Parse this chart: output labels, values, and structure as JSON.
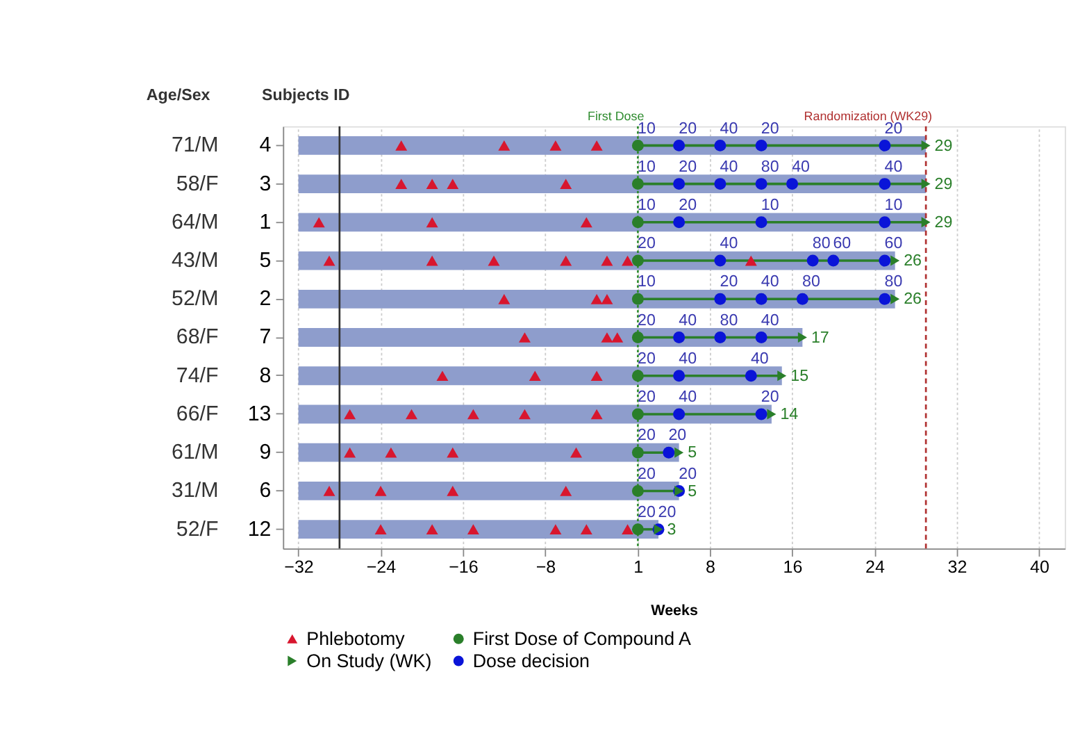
{
  "chart_data": {
    "type": "bar",
    "orientation": "horizontal",
    "xlabel": "Weeks",
    "ylabel": "Subjects ID",
    "y2label": "Age/Sex",
    "categories": [
      "4",
      "3",
      "1",
      "5",
      "2",
      "7",
      "8",
      "13",
      "9",
      "6",
      "12"
    ],
    "y2_categories": [
      "71/M",
      "58/F",
      "64/M",
      "43/M",
      "52/M",
      "68/F",
      "74/F",
      "66/F",
      "61/M",
      "31/M",
      "52/F"
    ],
    "xlim": [
      -33.5,
      42.5
    ],
    "xticks": [
      -32,
      -24,
      -16,
      -8,
      1,
      8,
      16,
      24,
      32,
      40
    ],
    "grid": "x",
    "legend": "bottom",
    "ref_lines": [
      {
        "axis": "x",
        "value": 1,
        "label": "First Dose",
        "color": "#2e8b2e",
        "line_style": "dotted"
      },
      {
        "axis": "x",
        "value": 29,
        "label": "Randomization (WK29)",
        "color": "#b03030",
        "line_style": "dashed"
      },
      {
        "axis": "x",
        "value": -28,
        "label": null,
        "color": "#333333",
        "line_style": "solid"
      }
    ],
    "series": [
      {
        "type": "bar",
        "color": "#8e9dcc",
        "base": [
          -32,
          -32,
          -32,
          -32,
          -32,
          -32,
          -32,
          -32,
          -32,
          -32,
          -32
        ],
        "values": [
          61,
          61,
          61,
          58,
          58,
          49,
          47,
          46,
          37,
          37,
          35
        ]
      },
      {
        "type": "scatter",
        "name": "Phlebotomy",
        "color": "#d8162e",
        "marker": "triangle",
        "x": [
          "4",
          "4",
          "4",
          "4",
          "3",
          "3",
          "3",
          "3",
          "1",
          "1",
          "1",
          "5",
          "5",
          "5",
          "5",
          "5",
          "5",
          "5",
          "2",
          "2",
          "2",
          "7",
          "7",
          "7",
          "8",
          "8",
          "8",
          "13",
          "13",
          "13",
          "13",
          "13",
          "9",
          "9",
          "9",
          "9",
          "6",
          "6",
          "6",
          "6",
          "12",
          "12",
          "12",
          "12",
          "12",
          "12"
        ],
        "values": [
          -22,
          -12,
          -7,
          -3,
          -22,
          -19,
          -17,
          -6,
          -30,
          -19,
          -4,
          -29,
          -19,
          -13,
          -6,
          -2,
          0,
          12,
          -12,
          -3,
          -2,
          -10,
          -2,
          -1,
          -18,
          -9,
          -3,
          -27,
          -21,
          -15,
          -10,
          -3,
          -27,
          -23,
          -17,
          -5,
          -29,
          -24,
          -17,
          -6,
          -24,
          -19,
          -15,
          -7,
          -4,
          0
        ]
      },
      {
        "type": "scatter",
        "name": "First Dose of Compound A",
        "color": "#2a7f2a",
        "marker": "circle",
        "x": [
          "4",
          "3",
          "1",
          "5",
          "2",
          "7",
          "8",
          "13",
          "9",
          "6",
          "12"
        ],
        "values": [
          1,
          1,
          1,
          1,
          1,
          1,
          1,
          1,
          1,
          1,
          1
        ]
      },
      {
        "type": "scatter",
        "name": "On Study (WK)",
        "color": "#2a7f2a",
        "marker": "triangle-right",
        "x": [
          "4",
          "3",
          "1",
          "5",
          "2",
          "7",
          "8",
          "13",
          "9",
          "6",
          "12"
        ],
        "values": [
          29,
          29,
          29,
          26,
          26,
          17,
          15,
          14,
          5,
          5,
          3
        ],
        "value_labels": [
          "29",
          "29",
          "29",
          "26",
          "26",
          "17",
          "15",
          "14",
          "5",
          "5",
          "3"
        ]
      },
      {
        "type": "scatter",
        "name": "Dose decision",
        "color": "#0a14d8",
        "marker": "circle",
        "x": [
          "4",
          "4",
          "4",
          "4",
          "3",
          "3",
          "3",
          "3",
          "3",
          "1",
          "1",
          "1",
          "5",
          "5",
          "5",
          "5",
          "2",
          "2",
          "2",
          "2",
          "7",
          "7",
          "7",
          "8",
          "8",
          "13",
          "13",
          "9",
          "6",
          "12"
        ],
        "values": [
          5,
          9,
          13,
          25,
          5,
          9,
          13,
          16,
          25,
          5,
          13,
          25,
          9,
          18,
          20,
          25,
          9,
          13,
          17,
          25,
          5,
          9,
          13,
          5,
          12,
          5,
          13,
          4,
          5,
          3
        ]
      }
    ],
    "annotations": [
      {
        "text": "10",
        "x": 1,
        "y": "4"
      },
      {
        "text": "20",
        "x": 5,
        "y": "4"
      },
      {
        "text": "40",
        "x": 9,
        "y": "4"
      },
      {
        "text": "20",
        "x": 13,
        "y": "4"
      },
      {
        "text": "20",
        "x": 25,
        "y": "4"
      },
      {
        "text": "10",
        "x": 1,
        "y": "3"
      },
      {
        "text": "20",
        "x": 5,
        "y": "3"
      },
      {
        "text": "40",
        "x": 9,
        "y": "3"
      },
      {
        "text": "80",
        "x": 13,
        "y": "3"
      },
      {
        "text": "40",
        "x": 16,
        "y": "3"
      },
      {
        "text": "40",
        "x": 25,
        "y": "3"
      },
      {
        "text": "10",
        "x": 1,
        "y": "1"
      },
      {
        "text": "20",
        "x": 5,
        "y": "1"
      },
      {
        "text": "10",
        "x": 13,
        "y": "1"
      },
      {
        "text": "10",
        "x": 25,
        "y": "1"
      },
      {
        "text": "20",
        "x": 1,
        "y": "5"
      },
      {
        "text": "40",
        "x": 9,
        "y": "5"
      },
      {
        "text": "80",
        "x": 18,
        "y": "5"
      },
      {
        "text": "60",
        "x": 20,
        "y": "5"
      },
      {
        "text": "60",
        "x": 25,
        "y": "5"
      },
      {
        "text": "10",
        "x": 1,
        "y": "2"
      },
      {
        "text": "20",
        "x": 9,
        "y": "2"
      },
      {
        "text": "40",
        "x": 13,
        "y": "2"
      },
      {
        "text": "80",
        "x": 17,
        "y": "2"
      },
      {
        "text": "80",
        "x": 25,
        "y": "2"
      },
      {
        "text": "20",
        "x": 1,
        "y": "7"
      },
      {
        "text": "40",
        "x": 5,
        "y": "7"
      },
      {
        "text": "80",
        "x": 9,
        "y": "7"
      },
      {
        "text": "40",
        "x": 13,
        "y": "7"
      },
      {
        "text": "20",
        "x": 1,
        "y": "8"
      },
      {
        "text": "40",
        "x": 5,
        "y": "8"
      },
      {
        "text": "40",
        "x": 12,
        "y": "8"
      },
      {
        "text": "20",
        "x": 1,
        "y": "13"
      },
      {
        "text": "40",
        "x": 5,
        "y": "13"
      },
      {
        "text": "20",
        "x": 13,
        "y": "13"
      },
      {
        "text": "20",
        "x": 1,
        "y": "9"
      },
      {
        "text": "20",
        "x": 4,
        "y": "9"
      },
      {
        "text": "20",
        "x": 1,
        "y": "6"
      },
      {
        "text": "20",
        "x": 5,
        "y": "6"
      },
      {
        "text": "20",
        "x": 1,
        "y": "12"
      },
      {
        "text": "20",
        "x": 3,
        "y": "12"
      }
    ]
  }
}
